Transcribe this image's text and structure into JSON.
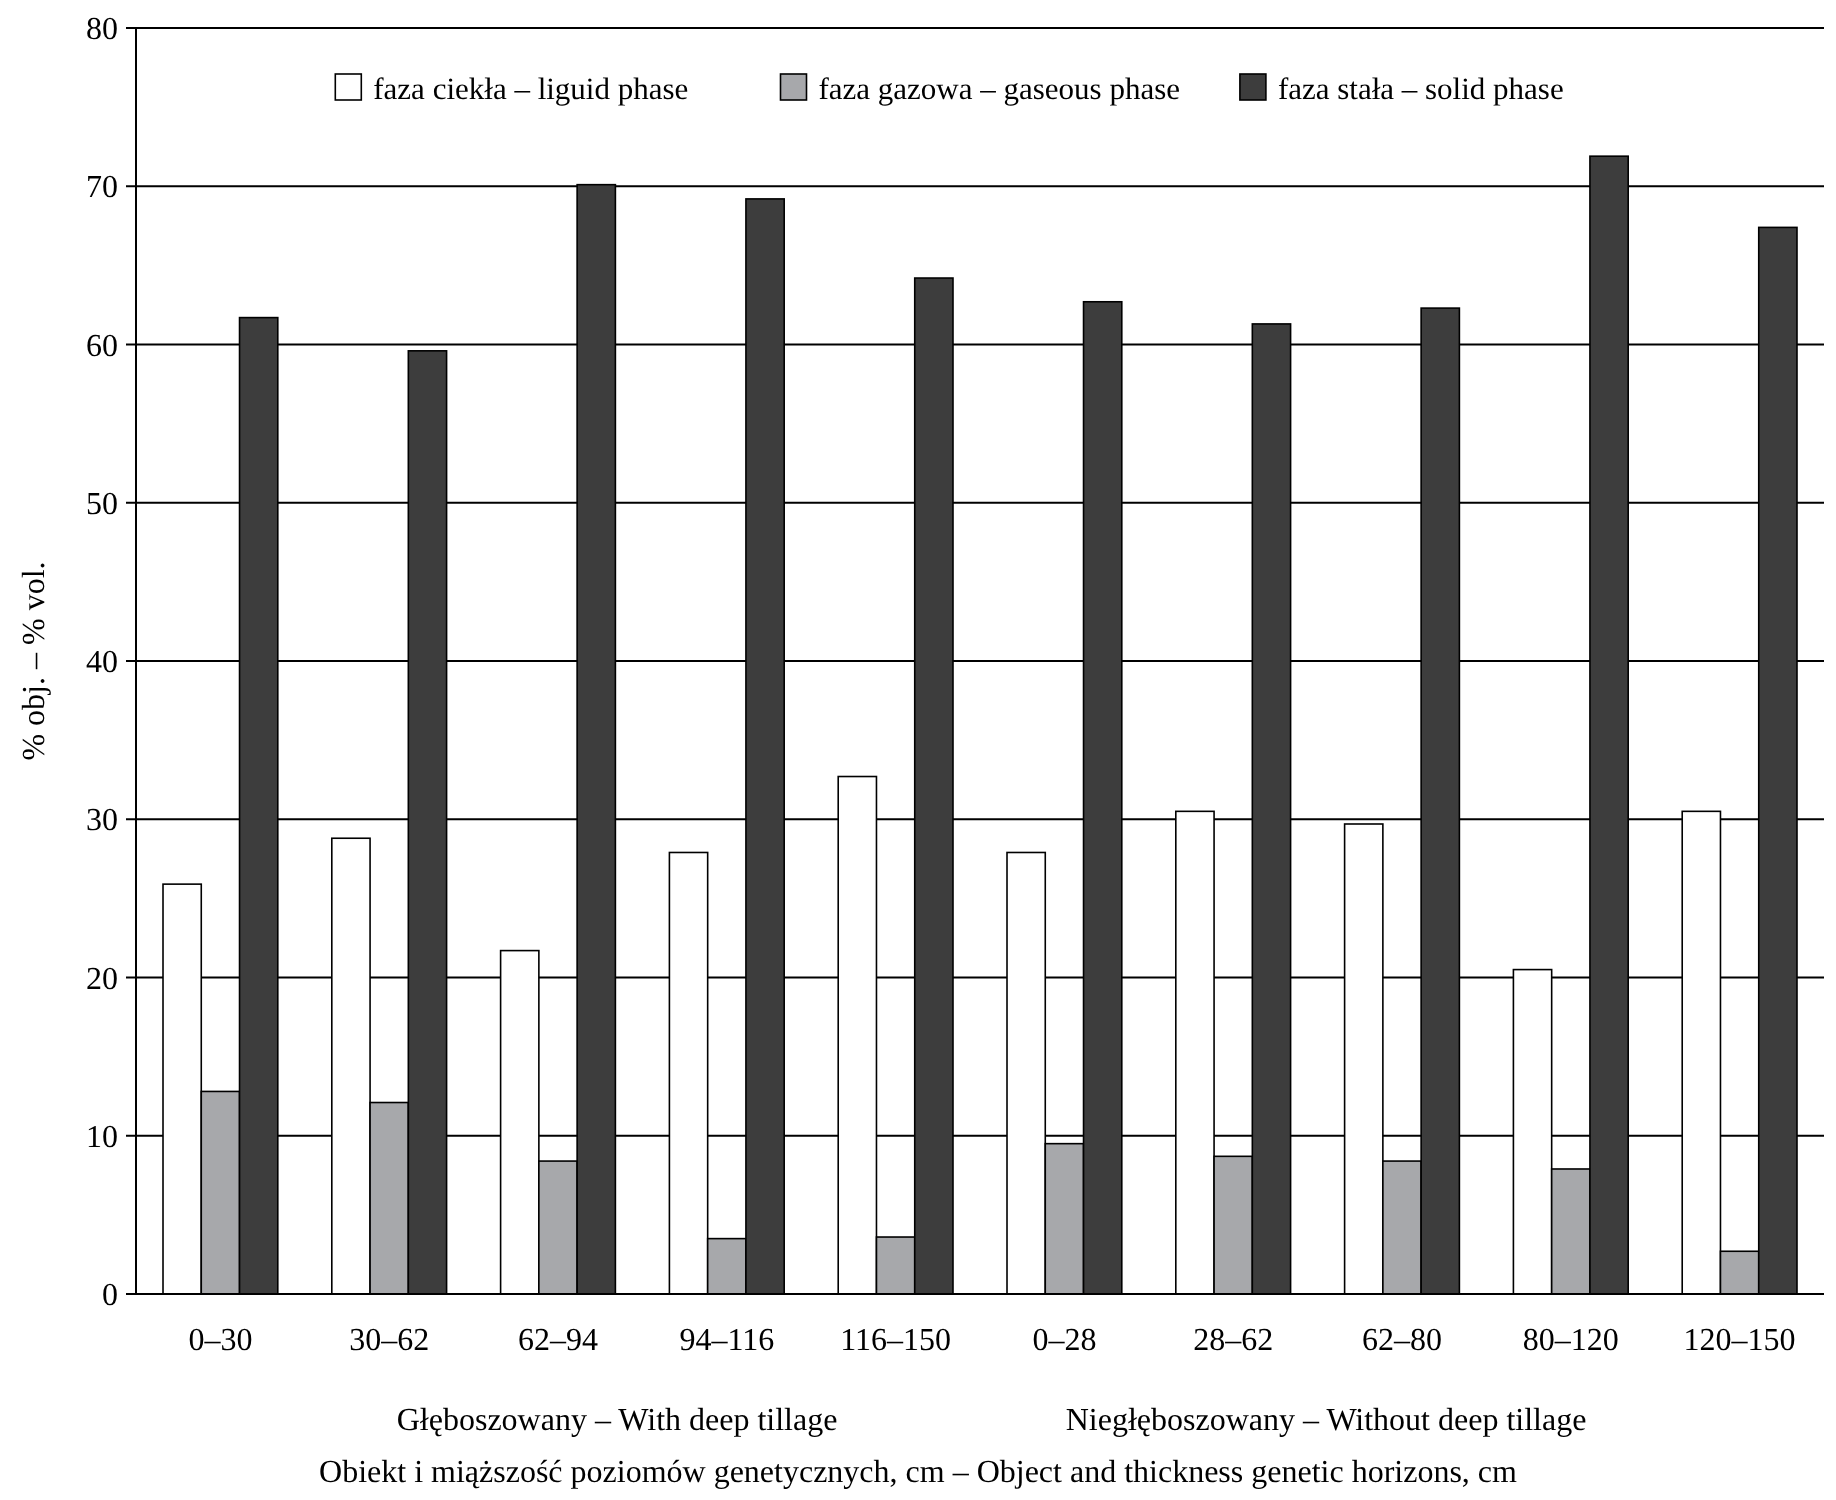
{
  "chart_data": {
    "type": "bar",
    "xlabel": "Obiekt i miąższość poziomów genetycznych, cm – Object and thickness genetic horizons, cm",
    "ylabel": "% obj. – % vol.",
    "categories": [
      "0–30",
      "30–62",
      "62–94",
      "94–116",
      "116–150",
      "0–28",
      "28–62",
      "62–80",
      "80–120",
      "120–150"
    ],
    "series": [
      {
        "name": "faza ciekła – liguid phase",
        "color": "#ffffff",
        "values": [
          25.9,
          28.8,
          21.7,
          27.9,
          32.7,
          27.9,
          30.5,
          29.7,
          20.5,
          30.5
        ]
      },
      {
        "name": "faza gazowa – gaseous phase",
        "color": "#a7a8ab",
        "values": [
          12.8,
          12.1,
          8.4,
          3.5,
          3.6,
          9.5,
          8.7,
          8.4,
          7.9,
          2.7
        ]
      },
      {
        "name": "faza stała – solid phase",
        "color": "#3d3d3d",
        "values": [
          61.7,
          59.6,
          70.1,
          69.2,
          64.2,
          62.7,
          61.3,
          62.3,
          71.9,
          67.4
        ]
      }
    ],
    "ylim": [
      0,
      80
    ],
    "yticks": [
      0,
      10,
      20,
      30,
      40,
      50,
      60,
      70,
      80
    ],
    "grid": "y",
    "legend": "top",
    "annotations": [
      "Głęboszowany – With deep tillage",
      "Niegłęboszowany – Without deep tillage"
    ]
  }
}
